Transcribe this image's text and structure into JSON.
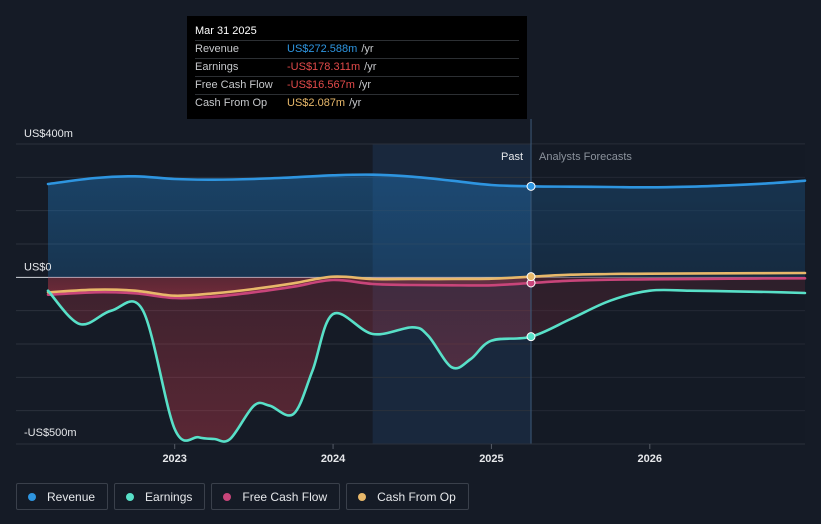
{
  "tooltip": {
    "date": "Mar 31 2025",
    "rows": [
      {
        "label": "Revenue",
        "value": "US$272.588m",
        "unit": "/yr",
        "color": "#2e95e0"
      },
      {
        "label": "Earnings",
        "value": "-US$178.311m",
        "unit": "/yr",
        "color": "#e24a4a"
      },
      {
        "label": "Free Cash Flow",
        "value": "-US$16.567m",
        "unit": "/yr",
        "color": "#e24a4a"
      },
      {
        "label": "Cash From Op",
        "value": "US$2.087m",
        "unit": "/yr",
        "color": "#e8b86a"
      }
    ]
  },
  "labels": {
    "past": "Past",
    "forecast": "Analysts Forecasts"
  },
  "legend": [
    {
      "name": "Revenue",
      "color": "#2e95e0"
    },
    {
      "name": "Earnings",
      "color": "#58e0c8"
    },
    {
      "name": "Free Cash Flow",
      "color": "#c8457a"
    },
    {
      "name": "Cash From Op",
      "color": "#e8b86a"
    }
  ],
  "chart_data": {
    "type": "line",
    "ylim": [
      -500,
      400
    ],
    "y_tick_labels": [
      {
        "value": 400,
        "label": "US$400m"
      },
      {
        "value": 0,
        "label": "US$0"
      },
      {
        "value": -500,
        "label": "-US$500m"
      }
    ],
    "x_ticks": [
      {
        "value": 2023.0,
        "label": "2023"
      },
      {
        "value": 2024.0,
        "label": "2024"
      },
      {
        "value": 2025.0,
        "label": "2025"
      },
      {
        "value": 2026.0,
        "label": "2026"
      }
    ],
    "xlim": [
      2022.2,
      2026.98
    ],
    "highlight_start": 2024.25,
    "divider": 2025.25,
    "series": [
      {
        "name": "Revenue",
        "color": "#2e95e0",
        "fill": true,
        "x": [
          2022.2,
          2022.5,
          2022.75,
          2023.0,
          2023.25,
          2023.5,
          2023.75,
          2024.0,
          2024.25,
          2024.5,
          2024.75,
          2025.0,
          2025.25,
          2025.5,
          2025.75,
          2026.0,
          2026.25,
          2026.5,
          2026.75,
          2026.98
        ],
        "y": [
          280,
          298,
          303,
          295,
          293,
          295,
          300,
          306,
          308,
          302,
          290,
          277,
          273,
          272,
          271,
          270,
          272,
          276,
          282,
          290
        ]
      },
      {
        "name": "Earnings",
        "color": "#58e0c8",
        "fill": true,
        "x": [
          2022.2,
          2022.4,
          2022.6,
          2022.8,
          2023.0,
          2023.15,
          2023.25,
          2023.35,
          2023.5,
          2023.6,
          2023.75,
          2023.87,
          2024.0,
          2024.25,
          2024.5,
          2024.6,
          2024.75,
          2024.87,
          2025.0,
          2025.25,
          2025.5,
          2025.75,
          2026.0,
          2026.25,
          2026.5,
          2026.75,
          2026.98
        ],
        "y": [
          -40,
          -140,
          -100,
          -100,
          -455,
          -480,
          -485,
          -485,
          -385,
          -385,
          -410,
          -280,
          -110,
          -170,
          -150,
          -175,
          -270,
          -245,
          -190,
          -178,
          -125,
          -70,
          -40,
          -40,
          -42,
          -44,
          -47
        ]
      },
      {
        "name": "Free Cash Flow",
        "color": "#c8457a",
        "fill": true,
        "x": [
          2022.2,
          2022.5,
          2022.75,
          2023.0,
          2023.25,
          2023.5,
          2023.75,
          2024.0,
          2024.25,
          2024.5,
          2024.75,
          2025.0,
          2025.25,
          2025.5,
          2025.75,
          2026.0,
          2026.5,
          2026.98
        ],
        "y": [
          -52,
          -45,
          -48,
          -62,
          -58,
          -45,
          -28,
          -8,
          -20,
          -23,
          -24,
          -24,
          -17,
          -10,
          -7,
          -6,
          -4,
          -3
        ]
      },
      {
        "name": "Cash From Op",
        "color": "#e8b86a",
        "fill": false,
        "x": [
          2022.2,
          2022.5,
          2022.75,
          2023.0,
          2023.25,
          2023.5,
          2023.75,
          2024.0,
          2024.25,
          2024.5,
          2024.75,
          2025.0,
          2025.25,
          2025.5,
          2025.75,
          2026.0,
          2026.5,
          2026.98
        ],
        "y": [
          -45,
          -37,
          -40,
          -55,
          -48,
          -35,
          -18,
          2,
          -5,
          -5,
          -5,
          -4,
          2,
          8,
          10,
          11,
          12,
          13
        ]
      }
    ]
  }
}
